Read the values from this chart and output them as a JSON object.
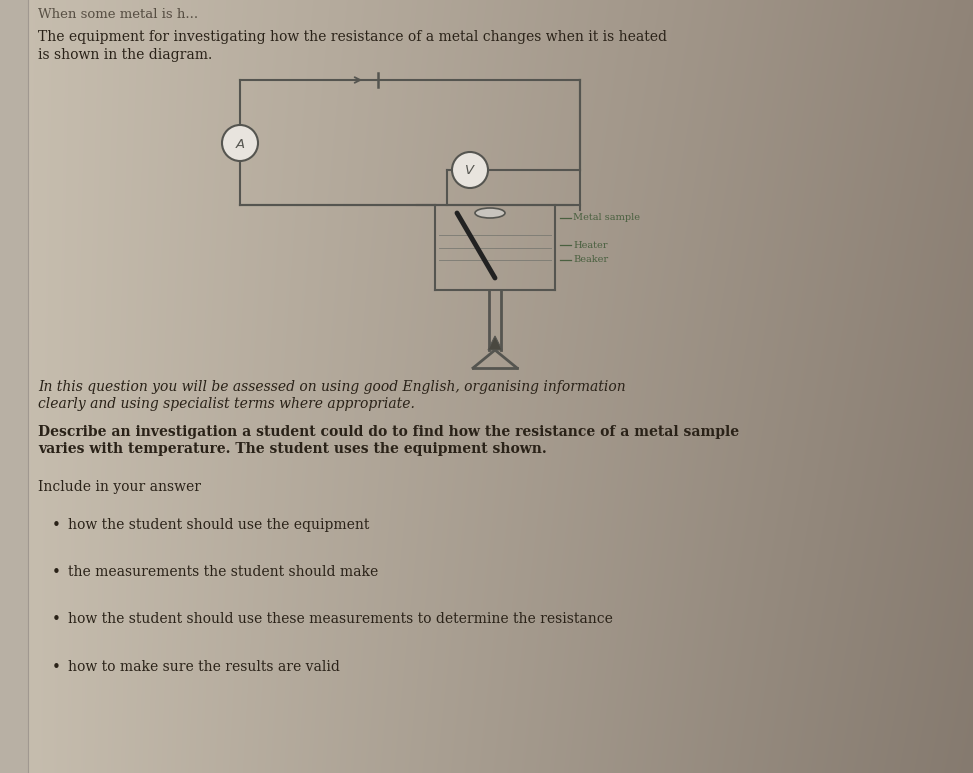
{
  "bg_left_color": "#c8bfb0",
  "bg_right_color": "#9a8e82",
  "text_color": "#2a2218",
  "title_text1": "The equipment for investigating how the resistance of a metal changes when it is heated",
  "title_text2": "is shown in the diagram.",
  "italic_text1": "In this question you will be assessed on using good English, organising information",
  "italic_text2": "clearly and using specialist terms where appropriate.",
  "bold_text1": "Describe an investigation a student could do to find how the resistance of a metal sample",
  "bold_text2": "varies with temperature. The student uses the equipment shown.",
  "include_text": "Include in your answer",
  "bullet1": "how the student should use the equipment",
  "bullet2": "the measurements the student should make",
  "bullet3": "how the student should use these measurements to determine the resistance",
  "bullet4": "how to make sure the results are valid",
  "label_metal": "Metal sample",
  "label_heater": "Heater",
  "label_beaker": "Beaker",
  "circuit_col": "#555550",
  "label_col": "#4a6040",
  "left_strip_color": "#b8b0a4",
  "shadow_color": "#8a7e72"
}
